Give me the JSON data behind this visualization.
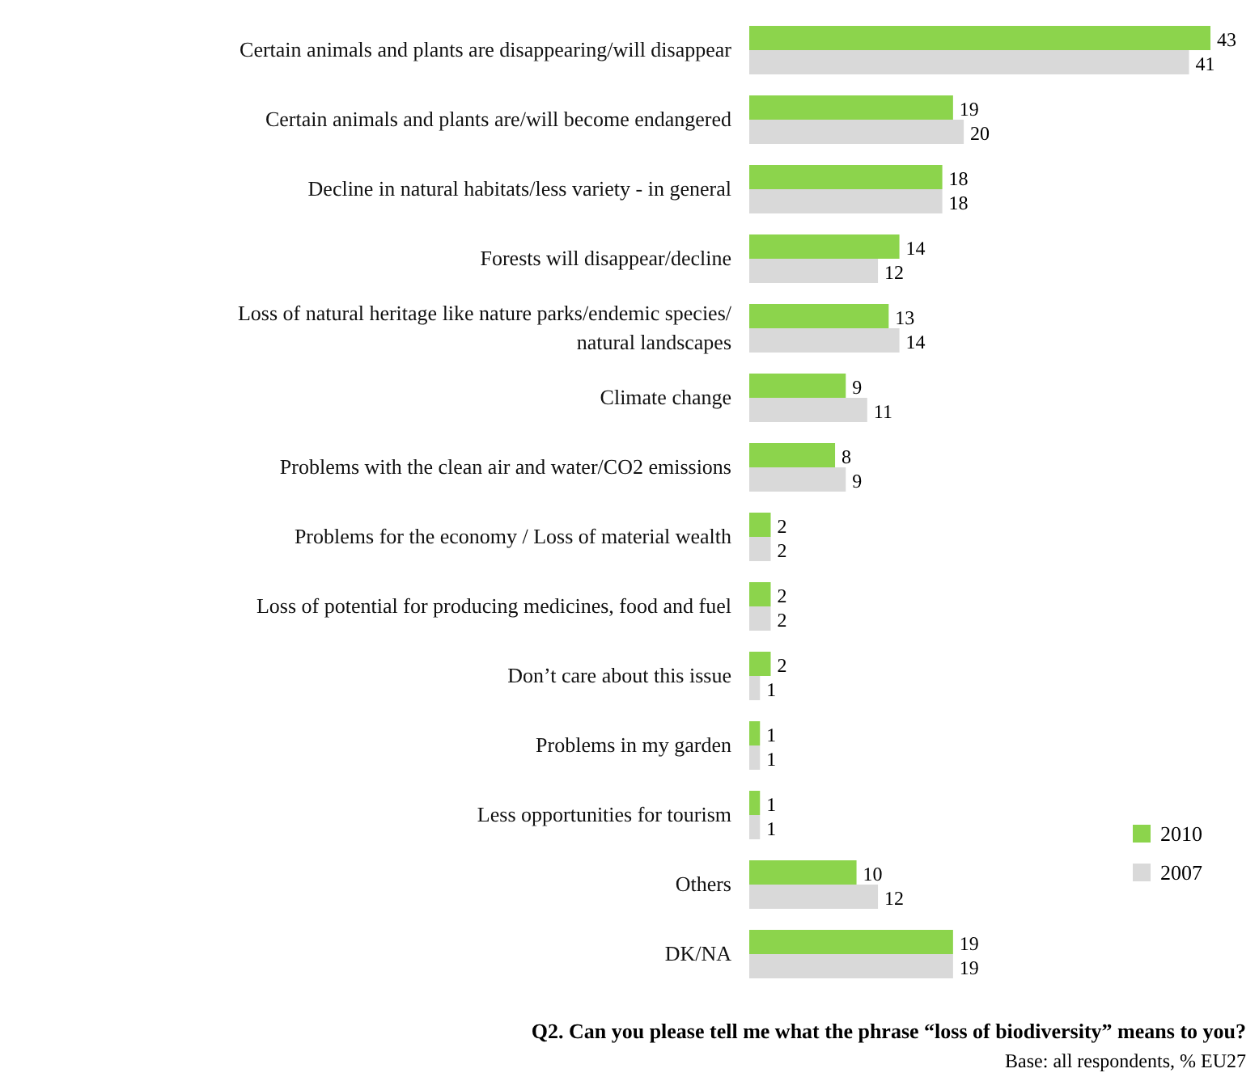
{
  "chart_data": {
    "type": "bar",
    "orientation": "horizontal",
    "title": "Q2. Can you please tell me what the phrase “loss of biodiversity” means to you?",
    "categories": [
      "Certain animals and plants are disappearing/will disappear",
      "Certain animals and plants are/will become endangered",
      "Decline in natural habitats/less variety - in general",
      "Forests will disappear/decline",
      "Loss of natural heritage like nature parks/endemic species/ natural landscapes",
      "Climate change",
      "Problems with the clean air and water/CO2 emissions",
      "Problems for the economy / Loss of material wealth",
      "Loss of potential for producing medicines, food and fuel",
      "Don’t care about this issue",
      "Problems in my garden",
      "Less opportunities for tourism",
      "Others",
      "DK/NA"
    ],
    "series": [
      {
        "name": "2010",
        "color": "#8cd44c",
        "values": [
          43,
          19,
          18,
          14,
          13,
          9,
          8,
          2,
          2,
          2,
          1,
          1,
          10,
          19
        ]
      },
      {
        "name": "2007",
        "color": "#d9d9d9",
        "values": [
          41,
          20,
          18,
          12,
          14,
          11,
          9,
          2,
          2,
          1,
          1,
          1,
          12,
          19
        ]
      }
    ],
    "data_labels": true,
    "legend": "bottom right",
    "annotations": [
      "Base: all respondents, % EU27"
    ]
  }
}
